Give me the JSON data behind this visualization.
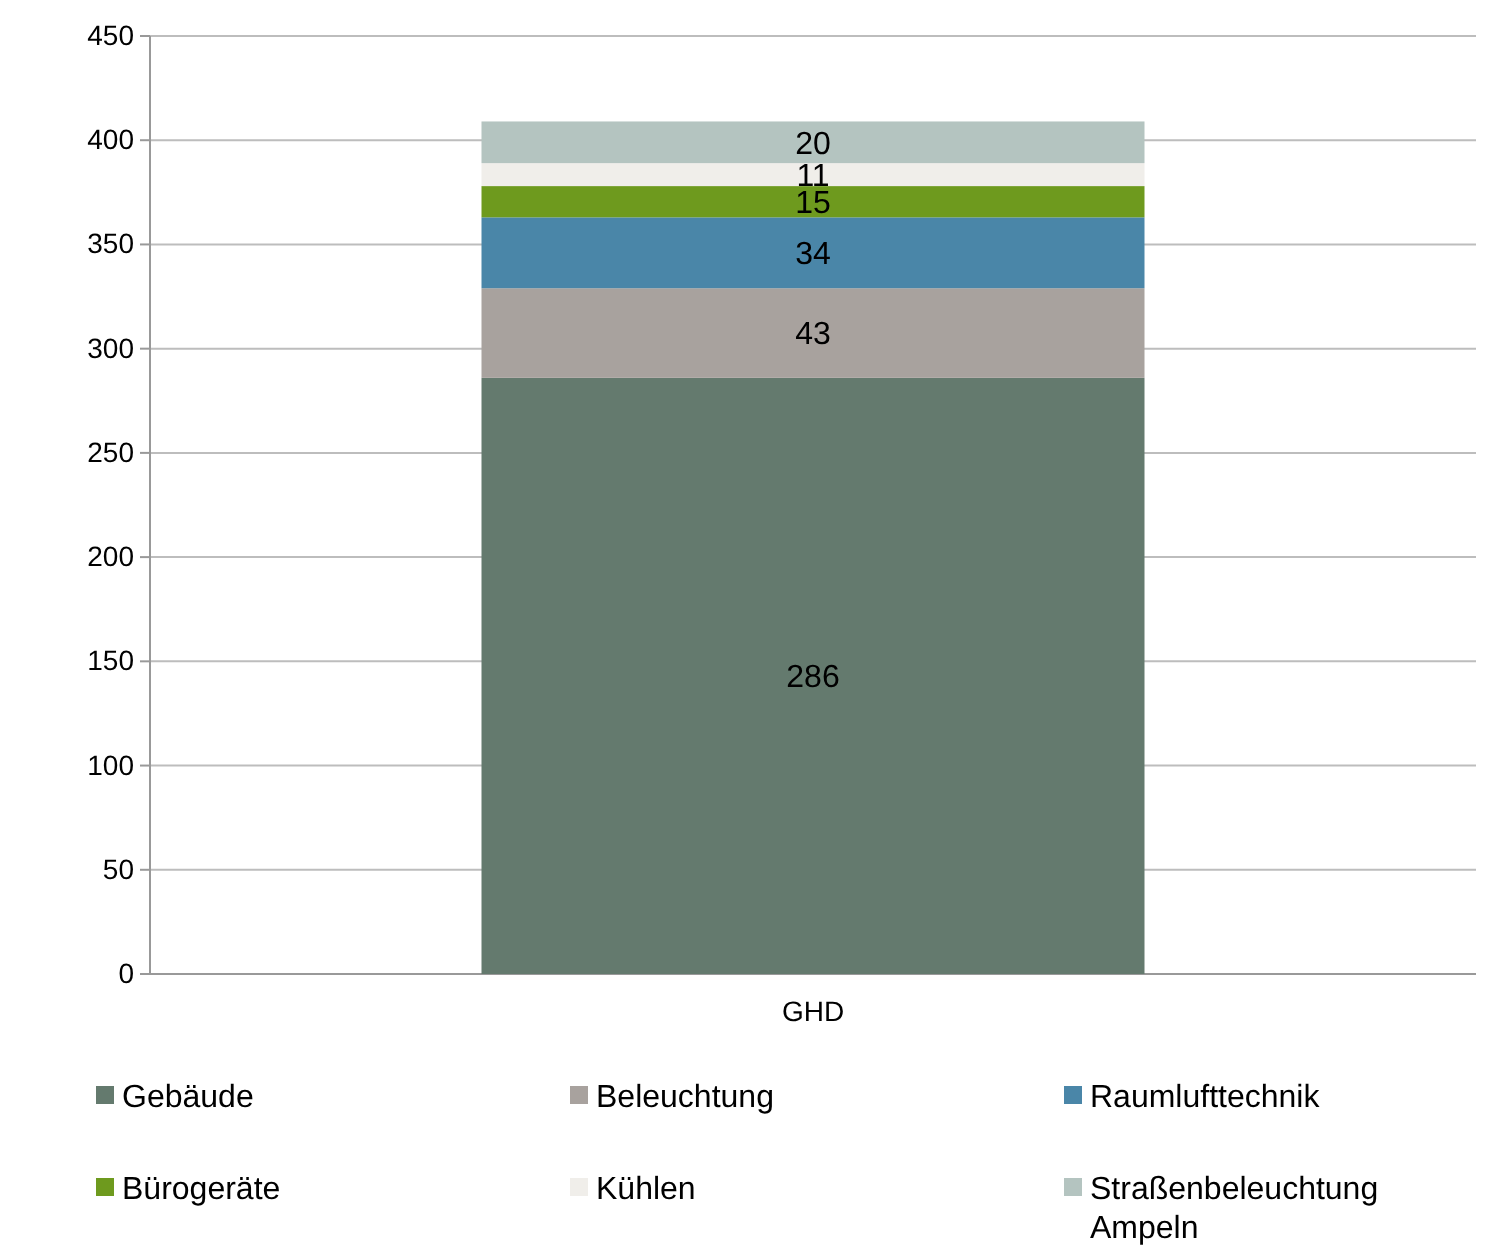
{
  "chart_data": {
    "type": "bar",
    "stacked": true,
    "categories": [
      "GHD"
    ],
    "ylim": [
      0,
      450
    ],
    "yticks": [
      0,
      50,
      100,
      150,
      200,
      250,
      300,
      350,
      400,
      450
    ],
    "grid": "y",
    "legend": "bottom",
    "data_labels": true,
    "series": [
      {
        "name": "Gebäude",
        "color": "#647a6e",
        "values": [
          286
        ]
      },
      {
        "name": "Beleuchtung",
        "color": "#a8a29e",
        "values": [
          43
        ]
      },
      {
        "name": "Raumlufttechnik",
        "color": "#4a86a8",
        "values": [
          34
        ]
      },
      {
        "name": "Bürogeräte",
        "color": "#6e9a1e",
        "values": [
          15
        ]
      },
      {
        "name": "Kühlen",
        "color": "#f0eeea",
        "values": [
          11
        ]
      },
      {
        "name": "Straßenbeleuchtung Ampeln",
        "color": "#b4c4c0",
        "values": [
          20
        ]
      }
    ]
  }
}
